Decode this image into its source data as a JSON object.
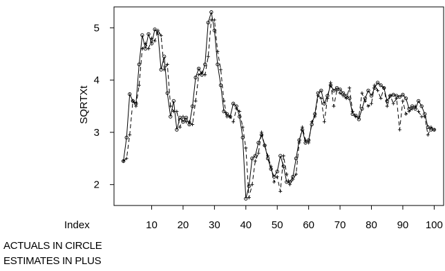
{
  "chart_data": {
    "type": "line",
    "title": "",
    "xlabel": "Index",
    "ylabel": "SQRTXt",
    "xlim": [
      -2,
      103
    ],
    "ylim": [
      1.6,
      5.4
    ],
    "x_ticks": [
      10,
      20,
      30,
      40,
      50,
      60,
      70,
      80,
      90,
      100
    ],
    "x_tick_labels": [
      "10",
      "20",
      "30",
      "40",
      "50",
      "60",
      "70",
      "80",
      "90",
      "100"
    ],
    "y_ticks": [
      2,
      3,
      4,
      5
    ],
    "y_tick_labels": [
      "2",
      "3",
      "4",
      "5"
    ],
    "grid": false,
    "x_start": 1,
    "series": [
      {
        "marker": "circle",
        "line": "solid",
        "values": [
          2.45,
          2.9,
          3.73,
          3.6,
          3.55,
          4.3,
          4.86,
          4.6,
          4.88,
          4.7,
          4.97,
          4.9,
          4.2,
          4.45,
          3.75,
          3.3,
          3.6,
          3.05,
          3.28,
          3.2,
          3.28,
          3.15,
          3.5,
          4.05,
          4.22,
          4.1,
          4.3,
          5.1,
          5.3,
          4.95,
          4.3,
          3.9,
          3.4,
          3.35,
          3.3,
          3.55,
          3.5,
          3.3,
          2.9,
          1.73,
          1.97,
          2.5,
          2.55,
          2.8,
          2.95,
          2.75,
          2.5,
          2.3,
          2.15,
          2.25,
          2.55,
          2.35,
          2.05,
          2.05,
          2.15,
          2.5,
          2.85,
          3.05,
          2.8,
          2.85,
          3.15,
          3.35,
          3.75,
          3.8,
          3.55,
          3.7,
          3.9,
          3.8,
          3.85,
          3.82,
          3.75,
          3.7,
          3.65,
          3.35,
          3.32,
          3.25,
          3.45,
          3.65,
          3.8,
          3.7,
          3.85,
          3.95,
          3.9,
          3.85,
          3.6,
          3.7,
          3.72,
          3.7,
          3.68,
          3.72,
          3.65,
          3.45,
          3.5,
          3.45,
          3.6,
          3.5,
          3.35,
          3.1,
          3.05,
          3.05
        ]
      },
      {
        "marker": "plus",
        "line": "dashed",
        "values": [
          2.45,
          2.5,
          2.95,
          3.6,
          3.5,
          3.9,
          4.6,
          4.7,
          4.6,
          4.8,
          4.75,
          4.95,
          4.85,
          4.2,
          4.3,
          3.5,
          3.4,
          3.4,
          3.1,
          3.3,
          3.2,
          3.2,
          3.15,
          3.6,
          4.1,
          4.15,
          4.1,
          4.45,
          5.15,
          5.15,
          4.55,
          4.2,
          3.6,
          3.3,
          3.3,
          3.2,
          3.45,
          3.4,
          3.1,
          2.7,
          1.75,
          2.0,
          2.45,
          2.6,
          3.0,
          2.75,
          2.55,
          2.35,
          2.05,
          2.15,
          1.87,
          2.55,
          2.2,
          2.0,
          2.1,
          2.2,
          2.8,
          3.1,
          2.85,
          2.8,
          3.2,
          3.3,
          3.7,
          3.65,
          3.2,
          3.65,
          3.95,
          3.5,
          3.8,
          3.75,
          3.7,
          3.65,
          3.85,
          3.4,
          3.3,
          3.3,
          3.75,
          3.6,
          3.5,
          3.55,
          3.9,
          3.8,
          3.65,
          3.85,
          3.5,
          3.7,
          3.55,
          3.65,
          3.05,
          3.6,
          3.35,
          3.4,
          3.45,
          3.5,
          3.4,
          3.3,
          3.3,
          2.95,
          3.1,
          3.05
        ]
      }
    ]
  },
  "notes": {
    "line1": "ACTUALS IN CIRCLE",
    "line2": "ESTIMATES IN PLUS"
  }
}
